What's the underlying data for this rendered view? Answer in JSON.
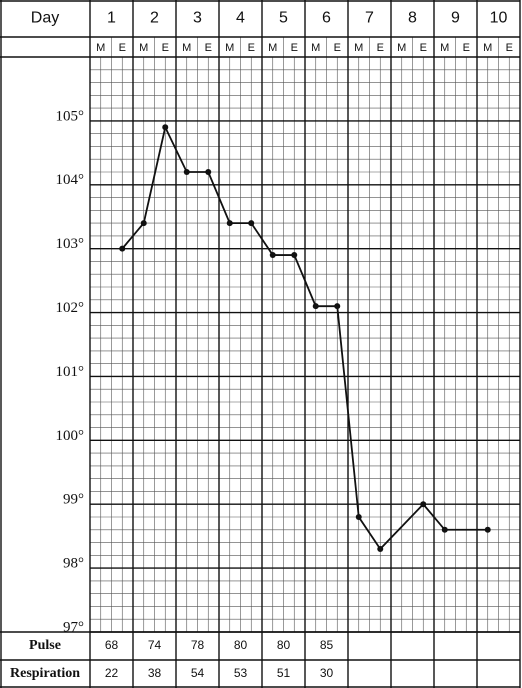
{
  "chart_data": {
    "type": "line",
    "header_label": "Day",
    "days": [
      "1",
      "2",
      "3",
      "4",
      "5",
      "6",
      "7",
      "8",
      "9",
      "10"
    ],
    "halves": [
      "M",
      "E"
    ],
    "x": [
      1.75,
      2.25,
      2.75,
      3.25,
      3.75,
      4.25,
      4.75,
      5.25,
      5.75,
      6.25,
      6.75,
      7.25,
      7.75,
      8.75,
      9.25,
      10.25
    ],
    "values": [
      103.0,
      103.4,
      104.9,
      104.2,
      104.2,
      103.4,
      103.4,
      102.9,
      102.9,
      102.1,
      102.1,
      98.8,
      98.3,
      99.0,
      98.6,
      98.6
    ],
    "color": "#111111",
    "xlim": [
      1,
      11
    ],
    "ylim": [
      97,
      106
    ],
    "yticks": [
      {
        "value": 97,
        "label": "97°"
      },
      {
        "value": 98,
        "label": "98°"
      },
      {
        "value": 99,
        "label": "99°"
      },
      {
        "value": 100,
        "label": "100°"
      },
      {
        "value": 101,
        "label": "101°"
      },
      {
        "value": 102,
        "label": "102°"
      },
      {
        "value": 103,
        "label": "103°"
      },
      {
        "value": 104,
        "label": "104°"
      },
      {
        "value": 105,
        "label": "105°"
      }
    ],
    "rows": [
      {
        "label": "Pulse",
        "values": [
          68,
          74,
          78,
          80,
          80,
          85
        ]
      },
      {
        "label": "Respiration",
        "values": [
          22,
          38,
          54,
          53,
          51,
          30
        ]
      }
    ]
  }
}
